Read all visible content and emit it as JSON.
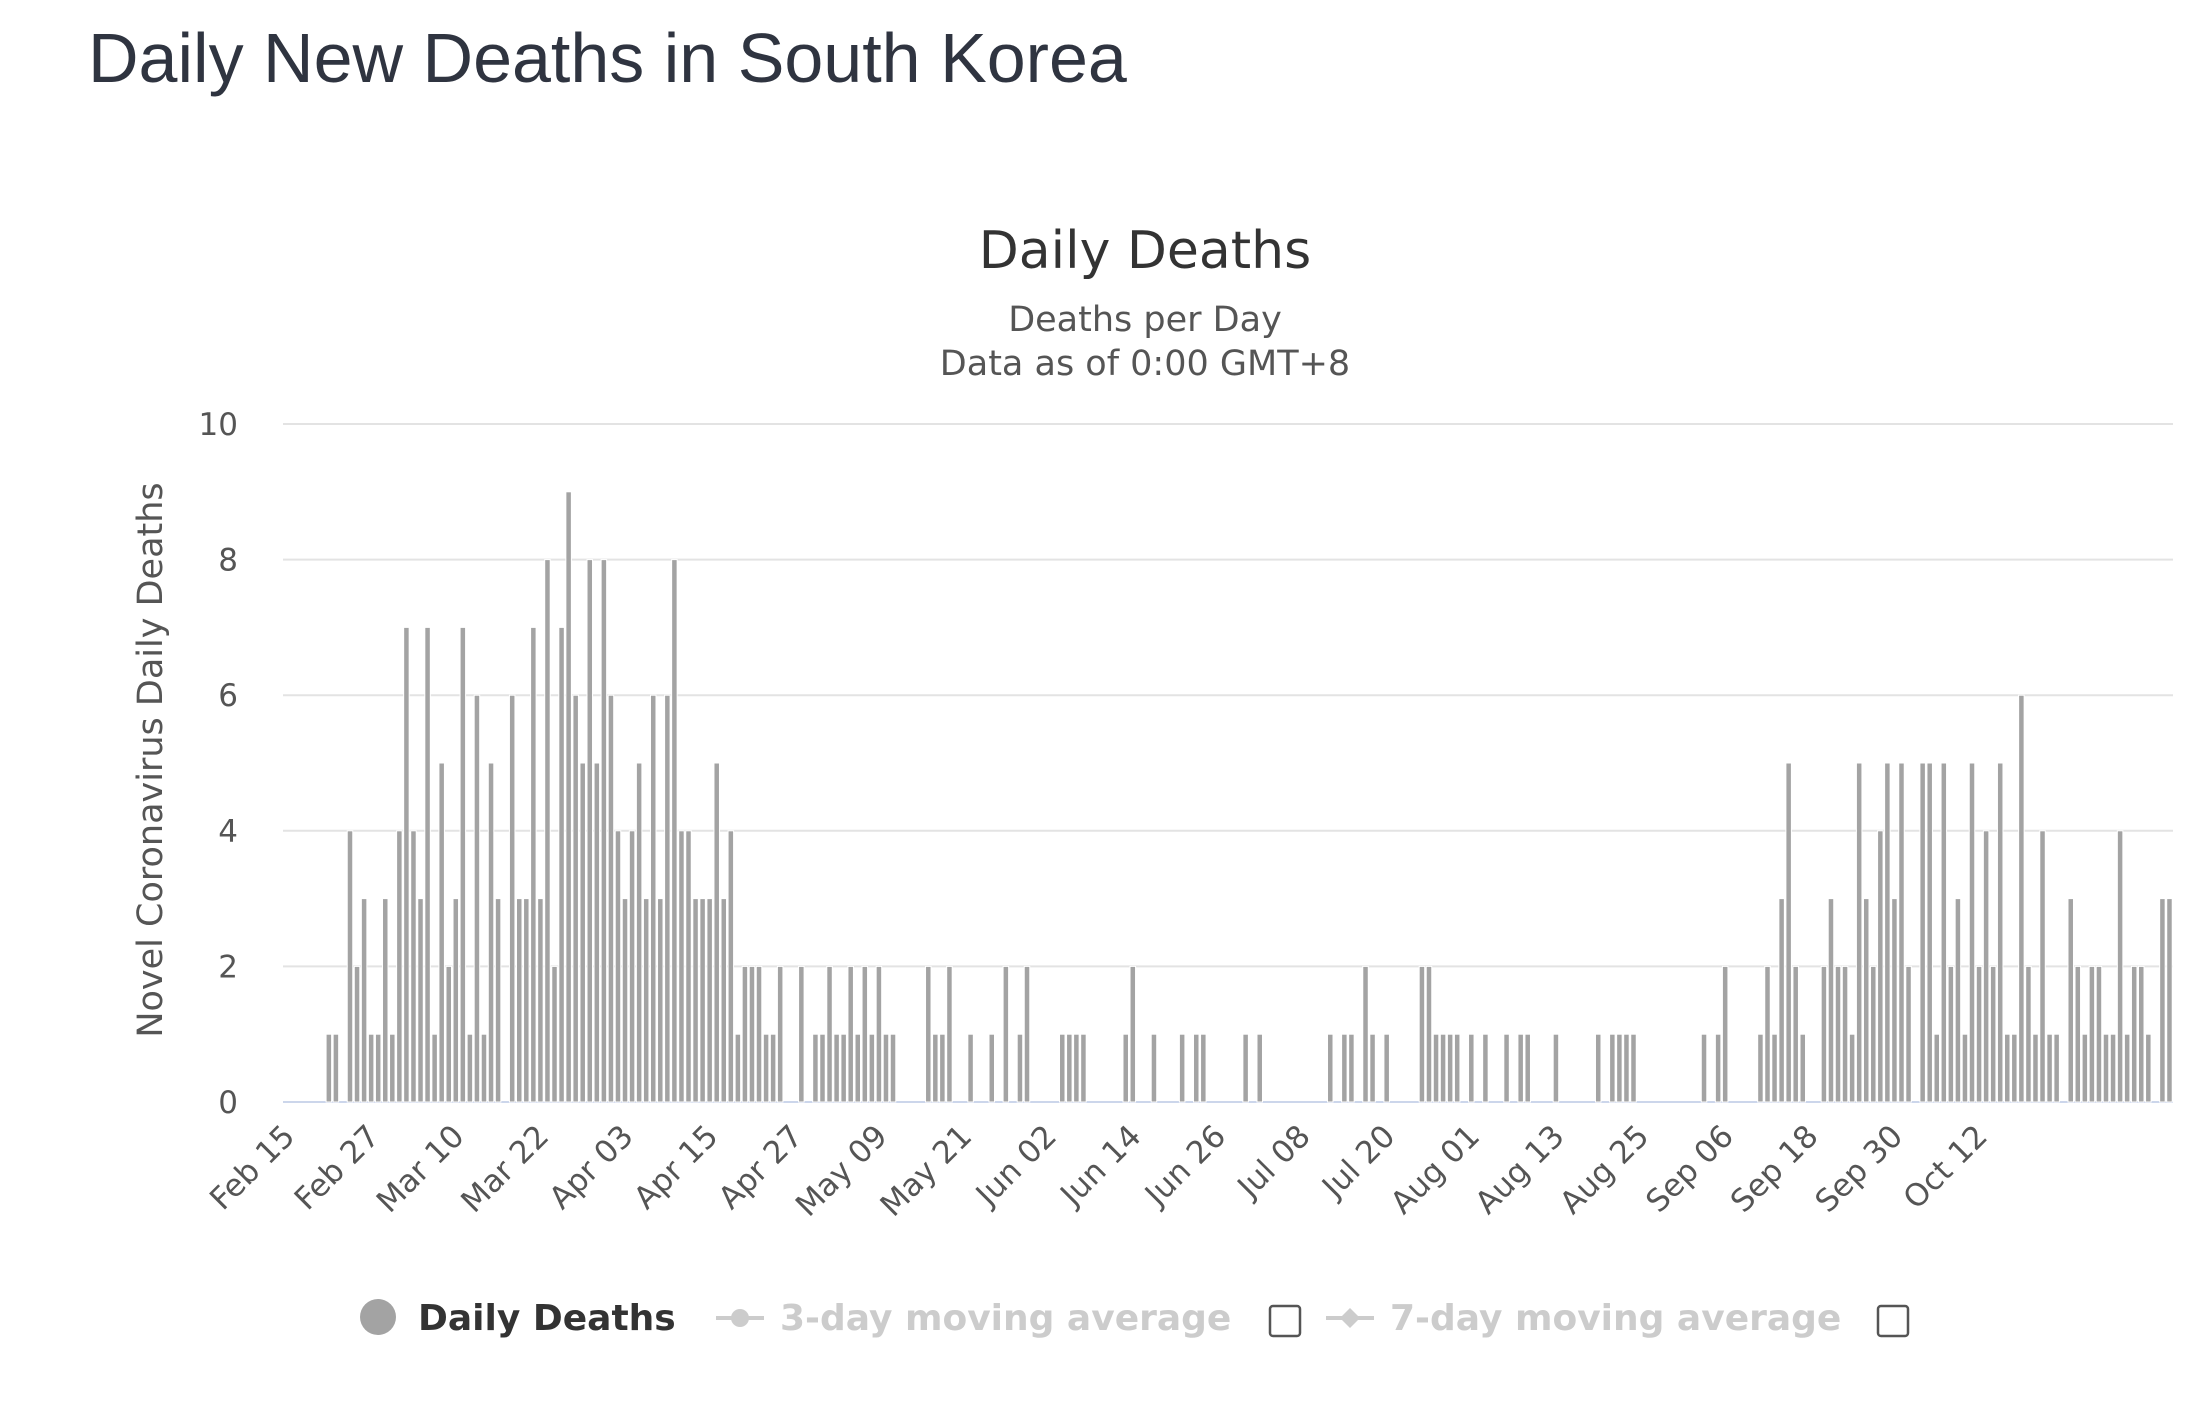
{
  "page": {
    "title": "Daily New Deaths in South Korea"
  },
  "chart_data": {
    "type": "bar",
    "title": "Daily Deaths",
    "subtitle_lines": [
      "Deaths per Day",
      "Data as of 0:00 GMT+8"
    ],
    "ylabel": "Novel Coronavirus Daily Deaths",
    "xlabel": "",
    "ylim": [
      0,
      10
    ],
    "yticks": [
      0,
      2,
      4,
      6,
      8,
      10
    ],
    "grid": true,
    "x_tick_labels": [
      "Feb 15",
      "Feb 27",
      "Mar 10",
      "Mar 22",
      "Apr 03",
      "Apr 15",
      "Apr 27",
      "May 09",
      "May 21",
      "Jun 02",
      "Jun 14",
      "Jun 26",
      "Jul 08",
      "Jul 20",
      "Aug 01",
      "Aug 13",
      "Aug 25",
      "Sep 06",
      "Sep 18",
      "Sep 30",
      "Oct 12"
    ],
    "first_date": "Feb 15",
    "bar_color": "#a3a3a3",
    "series": [
      {
        "name": "Daily Deaths",
        "values": [
          0,
          0,
          0,
          0,
          0,
          0,
          1,
          1,
          0,
          4,
          2,
          3,
          1,
          1,
          3,
          1,
          4,
          7,
          4,
          3,
          7,
          1,
          5,
          2,
          3,
          7,
          1,
          6,
          1,
          5,
          3,
          0,
          6,
          3,
          3,
          7,
          3,
          8,
          2,
          7,
          9,
          6,
          5,
          8,
          5,
          8,
          6,
          4,
          3,
          4,
          5,
          3,
          6,
          3,
          6,
          8,
          4,
          4,
          3,
          3,
          3,
          5,
          3,
          4,
          1,
          2,
          2,
          2,
          1,
          1,
          2,
          0,
          0,
          2,
          0,
          1,
          1,
          2,
          1,
          1,
          2,
          1,
          2,
          1,
          2,
          1,
          1,
          0,
          0,
          0,
          0,
          2,
          1,
          1,
          2,
          0,
          0,
          1,
          0,
          0,
          1,
          0,
          2,
          0,
          1,
          2,
          0,
          0,
          0,
          0,
          1,
          1,
          1,
          1,
          0,
          0,
          0,
          0,
          0,
          1,
          2,
          0,
          0,
          1,
          0,
          0,
          0,
          1,
          0,
          1,
          1,
          0,
          0,
          0,
          0,
          0,
          1,
          0,
          1,
          0,
          0,
          0,
          0,
          0,
          0,
          0,
          0,
          0,
          1,
          0,
          1,
          1,
          0,
          2,
          1,
          0,
          1,
          0,
          0,
          0,
          0,
          2,
          2,
          1,
          1,
          1,
          1,
          0,
          1,
          0,
          1,
          0,
          0,
          1,
          0,
          1,
          1,
          0,
          0,
          0,
          1,
          0,
          0,
          0,
          0,
          0,
          1,
          0,
          1,
          1,
          1,
          1,
          0,
          0,
          0,
          0,
          0,
          0,
          0,
          0,
          0,
          1,
          0,
          1,
          2,
          0,
          0,
          0,
          0,
          1,
          2,
          1,
          3,
          5,
          2,
          1,
          0,
          0,
          2,
          3,
          2,
          2,
          1,
          5,
          3,
          2,
          4,
          5,
          3,
          5,
          2,
          0,
          5,
          5,
          1,
          5,
          2,
          3,
          1,
          5,
          2,
          4,
          2,
          5,
          1,
          1,
          6,
          2,
          1,
          4,
          1,
          1,
          0,
          3,
          2,
          1,
          2,
          2,
          1,
          1,
          4,
          1,
          2,
          2,
          1,
          0,
          3,
          3
        ]
      }
    ],
    "legend": {
      "placement": "bottom-center",
      "items": [
        {
          "label": "Daily Deaths",
          "active": true,
          "color": "#a3a3a3"
        },
        {
          "label": "3-day moving average",
          "active": false,
          "color": "#cccccc"
        },
        {
          "label": "7-day moving average",
          "active": false,
          "color": "#cccccc"
        }
      ]
    }
  }
}
